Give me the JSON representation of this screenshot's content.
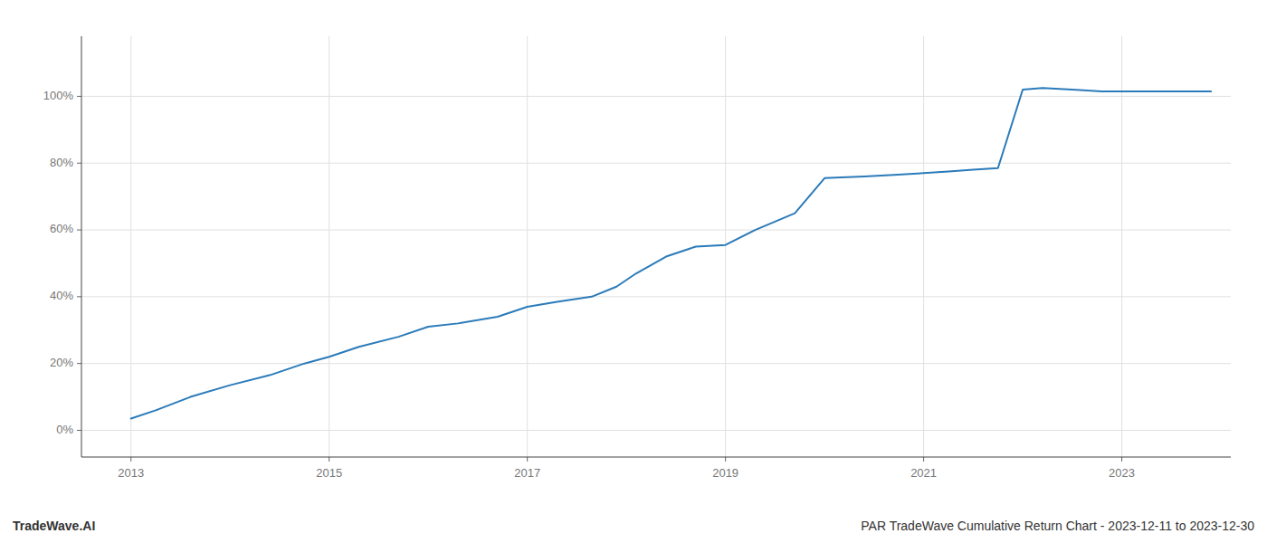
{
  "chart_data": {
    "type": "line",
    "x": [
      2013.0,
      2013.25,
      2013.6,
      2014.0,
      2014.4,
      2014.75,
      2015.0,
      2015.3,
      2015.7,
      2016.0,
      2016.3,
      2016.7,
      2017.0,
      2017.3,
      2017.65,
      2017.9,
      2018.1,
      2018.4,
      2018.7,
      2019.0,
      2019.3,
      2019.7,
      2020.0,
      2020.4,
      2020.7,
      2021.0,
      2021.25,
      2021.5,
      2021.75,
      2022.0,
      2022.2,
      2022.5,
      2022.8,
      2023.0,
      2023.5,
      2023.9
    ],
    "values": [
      3.5,
      6.0,
      10.0,
      13.5,
      16.5,
      20.0,
      22.0,
      25.0,
      28.0,
      31.0,
      32.0,
      34.0,
      37.0,
      38.5,
      40.0,
      43.0,
      47.0,
      52.0,
      55.0,
      55.5,
      60.0,
      65.0,
      75.5,
      76.0,
      76.5,
      77.0,
      77.5,
      78.0,
      78.5,
      102.0,
      102.5,
      102.0,
      101.5,
      101.5,
      101.5,
      101.5
    ],
    "color": "#2b7bba",
    "xlim": [
      2012.5,
      2024.1
    ],
    "ylim": [
      -8,
      118
    ],
    "xticks": [
      2013,
      2015,
      2017,
      2019,
      2021,
      2023
    ],
    "yticks": [
      {
        "value": 0,
        "label": "0%"
      },
      {
        "value": 20,
        "label": "20%"
      },
      {
        "value": 40,
        "label": "40%"
      },
      {
        "value": 60,
        "label": "60%"
      },
      {
        "value": 80,
        "label": "80%"
      },
      {
        "value": 100,
        "label": "100%"
      }
    ],
    "grid": true,
    "annotations": [
      "TradeWave.AI",
      "PAR TradeWave Cumulative Return Chart - 2023-12-11 to 2023-12-30"
    ]
  }
}
